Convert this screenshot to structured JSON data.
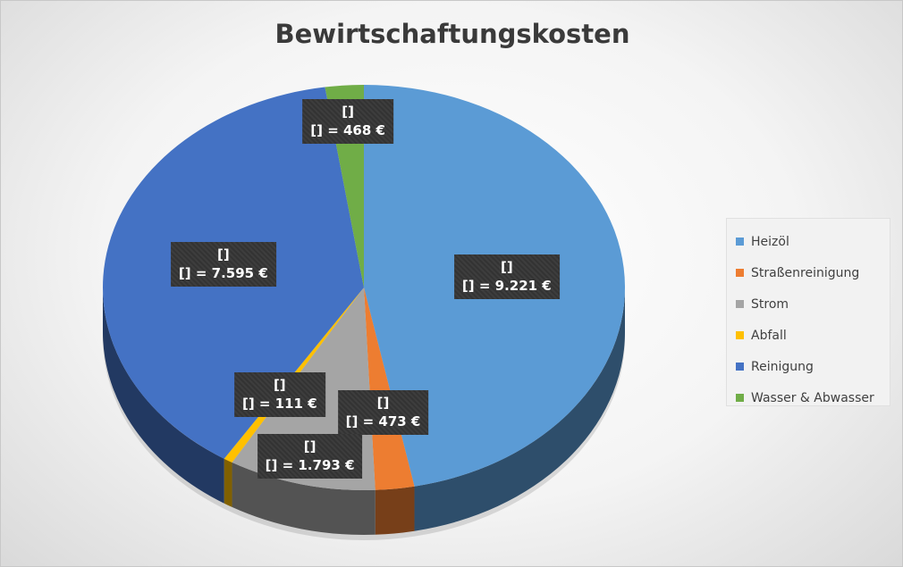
{
  "chart_data": {
    "type": "pie",
    "title": "Bewirtschaftungskosten",
    "currency": "€",
    "legend_position": "right",
    "slices": [
      {
        "name": "Heizöl",
        "value": 9221,
        "value_label": "[] = 9.221 €",
        "category_label": "[]",
        "color": "#5B9BD5"
      },
      {
        "name": "Straßenreinigung",
        "value": 473,
        "value_label": "[] = 473 €",
        "category_label": "[]",
        "color": "#ED7D31"
      },
      {
        "name": "Strom",
        "value": 1793,
        "value_label": "[] = 1.793 €",
        "category_label": "[]",
        "color": "#A5A5A5"
      },
      {
        "name": "Abfall",
        "value": 111,
        "value_label": "[] = 111 €",
        "category_label": "[]",
        "color": "#FFC000"
      },
      {
        "name": "Reinigung",
        "value": 7595,
        "value_label": "[] = 7.595 €",
        "category_label": "[]",
        "color": "#4472C4"
      },
      {
        "name": "Wasser & Abwasser",
        "value": 468,
        "value_label": "[] = 468 €",
        "category_label": "[]",
        "color": "#70AD47"
      }
    ]
  }
}
